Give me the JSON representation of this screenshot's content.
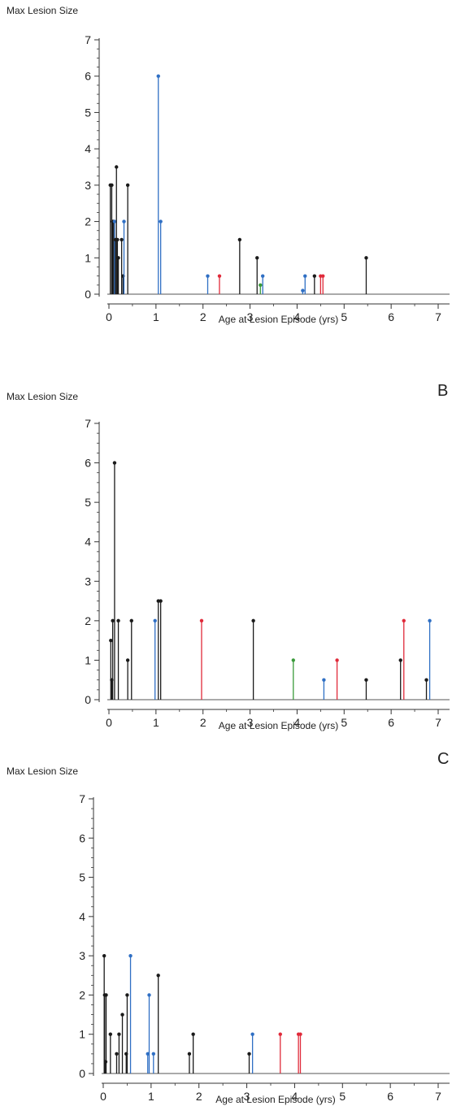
{
  "chart_data": [
    {
      "type": "stem",
      "panel_label": "",
      "ylabel": "Max Lesion Size",
      "xlabel": "Age at Lesion Episode (yrs)",
      "xlim": [
        0,
        7
      ],
      "ylim": [
        0,
        7
      ],
      "xticks": [
        0,
        1,
        2,
        3,
        4,
        5,
        6,
        7
      ],
      "yticks": [
        0,
        1,
        2,
        3,
        4,
        5,
        6,
        7
      ],
      "points": [
        {
          "x": 0.03,
          "y": 3,
          "color": "black"
        },
        {
          "x": 0.06,
          "y": 3,
          "color": "black"
        },
        {
          "x": 0.08,
          "y": 2,
          "color": "black"
        },
        {
          "x": 0.1,
          "y": 2,
          "color": "black"
        },
        {
          "x": 0.12,
          "y": 2,
          "color": "blue"
        },
        {
          "x": 0.14,
          "y": 1.5,
          "color": "black"
        },
        {
          "x": 0.16,
          "y": 3.5,
          "color": "black"
        },
        {
          "x": 0.18,
          "y": 1.5,
          "color": "black"
        },
        {
          "x": 0.2,
          "y": 1,
          "color": "black"
        },
        {
          "x": 0.27,
          "y": 1.5,
          "color": "black"
        },
        {
          "x": 0.3,
          "y": 0.5,
          "color": "black"
        },
        {
          "x": 0.32,
          "y": 2,
          "color": "blue"
        },
        {
          "x": 0.4,
          "y": 3,
          "color": "black"
        },
        {
          "x": 1.05,
          "y": 6,
          "color": "blue"
        },
        {
          "x": 1.1,
          "y": 2,
          "color": "blue"
        },
        {
          "x": 2.1,
          "y": 0.5,
          "color": "blue"
        },
        {
          "x": 2.35,
          "y": 0.5,
          "color": "red"
        },
        {
          "x": 2.78,
          "y": 1.5,
          "color": "black"
        },
        {
          "x": 3.15,
          "y": 1,
          "color": "black"
        },
        {
          "x": 3.22,
          "y": 0.25,
          "color": "green"
        },
        {
          "x": 3.27,
          "y": 0.5,
          "color": "blue"
        },
        {
          "x": 4.12,
          "y": 0.1,
          "color": "blue"
        },
        {
          "x": 4.17,
          "y": 0.5,
          "color": "blue"
        },
        {
          "x": 4.37,
          "y": 0.5,
          "color": "black"
        },
        {
          "x": 4.5,
          "y": 0.5,
          "color": "red"
        },
        {
          "x": 4.55,
          "y": 0.5,
          "color": "red"
        },
        {
          "x": 5.47,
          "y": 1,
          "color": "black"
        }
      ]
    },
    {
      "type": "stem",
      "panel_label": "B",
      "ylabel": "Max Lesion Size",
      "xlabel": "Age at Lesion Episode (yrs)",
      "xlim": [
        0,
        7
      ],
      "ylim": [
        0,
        7
      ],
      "xticks": [
        0,
        1,
        2,
        3,
        4,
        5,
        6,
        7
      ],
      "yticks": [
        0,
        1,
        2,
        3,
        4,
        5,
        6,
        7
      ],
      "points": [
        {
          "x": 0.04,
          "y": 1.5,
          "color": "black"
        },
        {
          "x": 0.06,
          "y": 0.5,
          "color": "black"
        },
        {
          "x": 0.08,
          "y": 2,
          "color": "black"
        },
        {
          "x": 0.12,
          "y": 6,
          "color": "black"
        },
        {
          "x": 0.2,
          "y": 2,
          "color": "black"
        },
        {
          "x": 0.4,
          "y": 1,
          "color": "black"
        },
        {
          "x": 0.48,
          "y": 2,
          "color": "black"
        },
        {
          "x": 0.98,
          "y": 2,
          "color": "blue"
        },
        {
          "x": 1.05,
          "y": 2.5,
          "color": "black"
        },
        {
          "x": 1.1,
          "y": 2.5,
          "color": "black"
        },
        {
          "x": 1.97,
          "y": 2,
          "color": "red"
        },
        {
          "x": 3.07,
          "y": 2,
          "color": "black"
        },
        {
          "x": 3.92,
          "y": 1,
          "color": "green"
        },
        {
          "x": 4.57,
          "y": 0.5,
          "color": "blue"
        },
        {
          "x": 4.85,
          "y": 1,
          "color": "red"
        },
        {
          "x": 5.47,
          "y": 0.5,
          "color": "black"
        },
        {
          "x": 6.2,
          "y": 1,
          "color": "black"
        },
        {
          "x": 6.27,
          "y": 2,
          "color": "red"
        },
        {
          "x": 6.75,
          "y": 0.5,
          "color": "black"
        },
        {
          "x": 6.82,
          "y": 2,
          "color": "blue"
        }
      ]
    },
    {
      "type": "stem",
      "panel_label": "C",
      "ylabel": "Max Lesion Size",
      "xlabel": "Age at Lesion Episode (yrs)",
      "xlim": [
        0,
        7
      ],
      "ylim": [
        0,
        7
      ],
      "xticks": [
        0,
        1,
        2,
        3,
        4,
        5,
        6,
        7
      ],
      "yticks": [
        0,
        1,
        2,
        3,
        4,
        5,
        6,
        7
      ],
      "points": [
        {
          "x": 0.02,
          "y": 3,
          "color": "black"
        },
        {
          "x": 0.03,
          "y": 2,
          "color": "black"
        },
        {
          "x": 0.05,
          "y": 0.3,
          "color": "black"
        },
        {
          "x": 0.06,
          "y": 2,
          "color": "black"
        },
        {
          "x": 0.15,
          "y": 1,
          "color": "black"
        },
        {
          "x": 0.28,
          "y": 0.5,
          "color": "black"
        },
        {
          "x": 0.33,
          "y": 1,
          "color": "black"
        },
        {
          "x": 0.4,
          "y": 1.5,
          "color": "black"
        },
        {
          "x": 0.48,
          "y": 0.5,
          "color": "black"
        },
        {
          "x": 0.5,
          "y": 2,
          "color": "black"
        },
        {
          "x": 0.57,
          "y": 3,
          "color": "blue"
        },
        {
          "x": 0.93,
          "y": 0.5,
          "color": "blue"
        },
        {
          "x": 0.96,
          "y": 2,
          "color": "blue"
        },
        {
          "x": 1.05,
          "y": 0.5,
          "color": "blue"
        },
        {
          "x": 1.15,
          "y": 2.5,
          "color": "black"
        },
        {
          "x": 1.8,
          "y": 0.5,
          "color": "black"
        },
        {
          "x": 1.88,
          "y": 1,
          "color": "black"
        },
        {
          "x": 3.05,
          "y": 0.5,
          "color": "black"
        },
        {
          "x": 3.12,
          "y": 1,
          "color": "blue"
        },
        {
          "x": 3.7,
          "y": 1,
          "color": "red"
        },
        {
          "x": 4.08,
          "y": 1,
          "color": "red"
        },
        {
          "x": 4.12,
          "y": 1,
          "color": "red"
        }
      ]
    }
  ],
  "colors": {
    "black": "#1a1a1a",
    "blue": "#2f6fc4",
    "red": "#e02a3a",
    "green": "#3a9a3a",
    "axis": "#333333",
    "baseline": "#555555"
  }
}
